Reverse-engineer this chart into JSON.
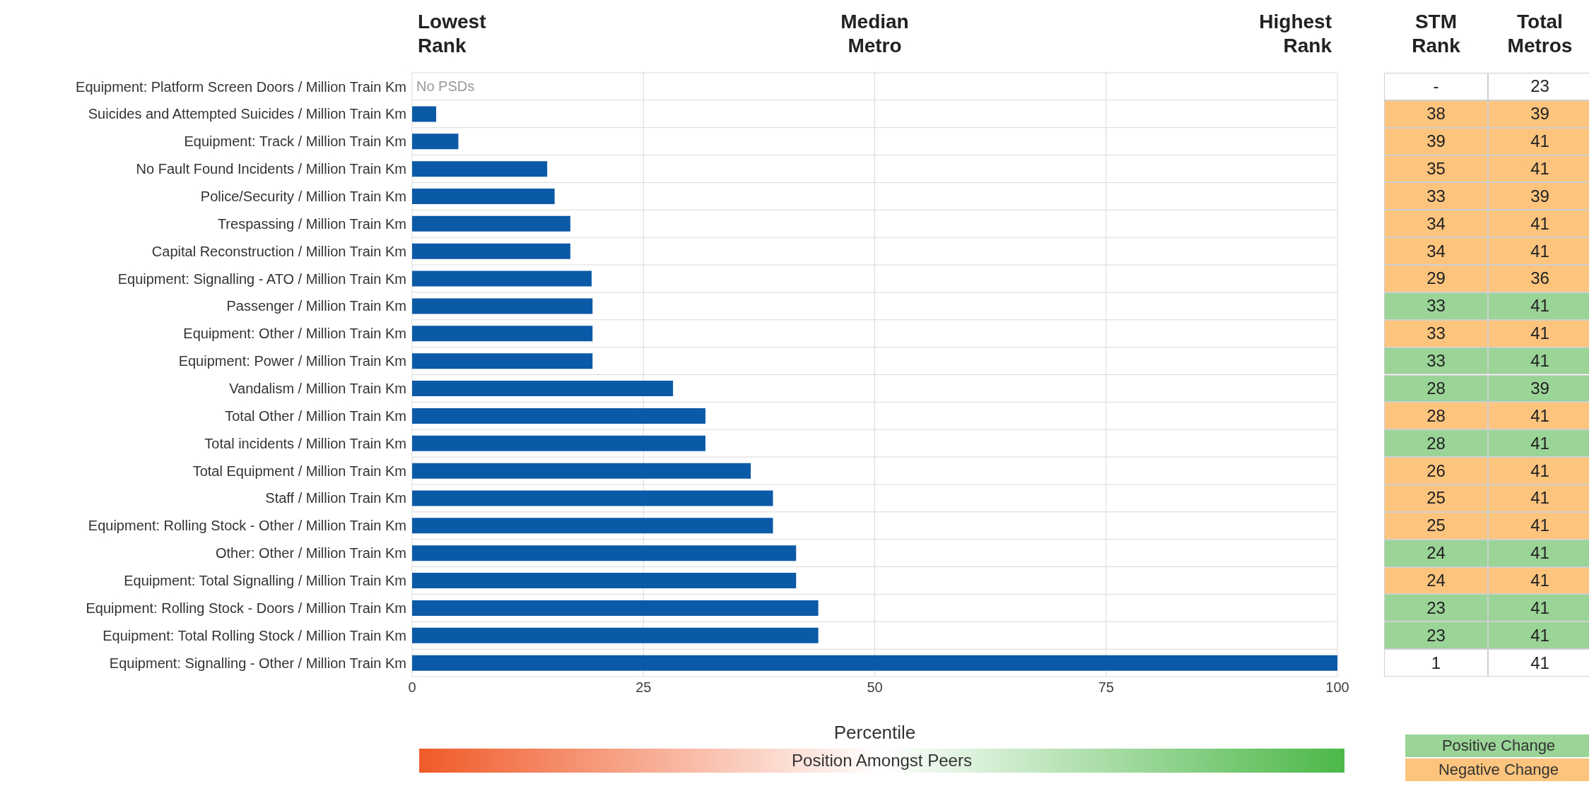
{
  "chart_data": [
    {
      "type": "bar",
      "orientation": "horizontal",
      "xlabel": "Percentile",
      "color": "#0a5aa8",
      "grid": true,
      "categories": [
        "Equipment: Platform Screen Doors / Million Train Km",
        "Suicides and Attempted Suicides / Million Train Km",
        "Equipment: Track  / Million Train Km",
        "No Fault Found Incidents / Million Train Km",
        "Police/Security / Million Train Km",
        "Trespassing / Million Train Km",
        "Capital Reconstruction / Million Train Km",
        "Equipment: Signalling - ATO / Million Train Km",
        "Passenger / Million Train Km",
        "Equipment: Other / Million Train Km",
        "Equipment: Power / Million Train Km",
        "Vandalism / Million Train Km",
        "Total Other / Million Train Km",
        "Total incidents / Million Train Km",
        "Total Equipment / Million Train Km",
        "Staff / Million Train Km",
        "Equipment: Rolling Stock - Other / Million Train Km",
        "Other: Other / Million Train Km",
        "Equipment: Total Signalling / Million Train Km",
        "Equipment: Rolling Stock - Doors / Million Train Km",
        "Equipment: Total Rolling Stock / Million Train Km",
        "Equipment: Signalling - Other / Million Train Km"
      ],
      "values": [
        null,
        2.6,
        5,
        14.6,
        15.4,
        17.1,
        17.1,
        19.4,
        19.5,
        19.5,
        19.5,
        28.2,
        31.7,
        31.7,
        36.6,
        39,
        39,
        41.5,
        41.5,
        43.9,
        43.9,
        100
      ],
      "xlim": [
        0,
        100
      ],
      "xticks": [
        0,
        25,
        50,
        75,
        100
      ],
      "annotations": [
        "Lowest Rank",
        "Median Metro",
        "Highest Rank",
        "No PSDs",
        "Position Amongst Peers"
      ]
    },
    {
      "type": "other",
      "categories": [
        "STM Rank",
        "Total Metros"
      ],
      "cell_labels": [
        [
          "-",
          "23"
        ],
        [
          "38",
          "39"
        ],
        [
          "39",
          "41"
        ],
        [
          "35",
          "41"
        ],
        [
          "33",
          "39"
        ],
        [
          "34",
          "41"
        ],
        [
          "34",
          "41"
        ],
        [
          "29",
          "36"
        ],
        [
          "33",
          "41"
        ],
        [
          "33",
          "41"
        ],
        [
          "33",
          "41"
        ],
        [
          "28",
          "39"
        ],
        [
          "28",
          "41"
        ],
        [
          "28",
          "41"
        ],
        [
          "26",
          "41"
        ],
        [
          "25",
          "41"
        ],
        [
          "25",
          "41"
        ],
        [
          "24",
          "41"
        ],
        [
          "24",
          "41"
        ],
        [
          "23",
          "41"
        ],
        [
          "23",
          "41"
        ],
        [
          "1",
          "41"
        ]
      ],
      "colors": [
        "#ffffff",
        "#fcc47c",
        "#fcc47c",
        "#fcc47c",
        "#fcc47c",
        "#fcc47c",
        "#fcc47c",
        "#fcc47c",
        "#9ad497",
        "#fcc47c",
        "#9ad497",
        "#9ad497",
        "#fcc47c",
        "#9ad497",
        "#fcc47c",
        "#fcc47c",
        "#fcc47c",
        "#9ad497",
        "#fcc47c",
        "#9ad497",
        "#9ad497",
        "#ffffff"
      ],
      "annotations": [
        "Positive Change",
        "Negative Change"
      ]
    }
  ]
}
